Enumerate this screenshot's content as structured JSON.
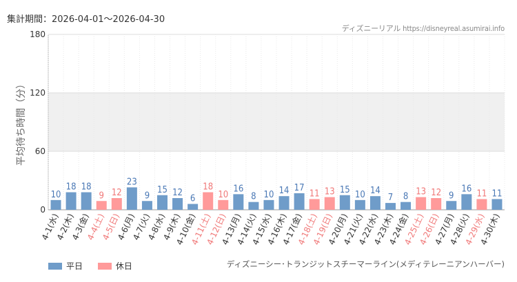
{
  "header": {
    "period": "集計期間：2026-04-01〜2026-04-30",
    "source": "ディズニーリアル https://disneyreal.asumirai.info"
  },
  "footer": {
    "attraction": "ディズニーシー･トランジットスチーマーライン(メディテレーニアンハーバー)"
  },
  "colors": {
    "weekday": "#6f9cc9",
    "holiday": "#ff9a9a",
    "weekday_label": "#4a78b5",
    "holiday_label": "#f07878",
    "band": "#f0f0f0"
  },
  "chart_data": {
    "type": "bar",
    "ylabel": "平均待ち時間（分）",
    "ylim": [
      0,
      180
    ],
    "yticks": [
      0,
      60,
      120,
      180
    ],
    "categories": [
      "4-1(水)",
      "4-2(木)",
      "4-3(金)",
      "4-4(土)",
      "4-5(日)",
      "4-6(月)",
      "4-7(火)",
      "4-8(水)",
      "4-9(木)",
      "4-10(金)",
      "4-11(土)",
      "4-12(日)",
      "4-13(月)",
      "4-14(火)",
      "4-15(水)",
      "4-16(木)",
      "4-17(金)",
      "4-18(土)",
      "4-19(日)",
      "4-20(月)",
      "4-21(火)",
      "4-22(水)",
      "4-23(木)",
      "4-24(金)",
      "4-25(土)",
      "4-26(日)",
      "4-27(月)",
      "4-28(火)",
      "4-29(水)",
      "4-30(木)"
    ],
    "values": [
      10,
      18,
      18,
      9,
      12,
      23,
      9,
      15,
      12,
      6,
      18,
      10,
      16,
      8,
      10,
      14,
      17,
      11,
      13,
      15,
      10,
      14,
      7,
      8,
      13,
      12,
      9,
      16,
      11,
      11
    ],
    "holiday": [
      false,
      false,
      false,
      true,
      true,
      false,
      false,
      false,
      false,
      false,
      true,
      true,
      false,
      false,
      false,
      false,
      false,
      true,
      true,
      false,
      false,
      false,
      false,
      false,
      true,
      true,
      false,
      false,
      true,
      false
    ],
    "legend": [
      {
        "name": "平日",
        "color_key": "weekday"
      },
      {
        "name": "休日",
        "color_key": "holiday"
      }
    ]
  }
}
